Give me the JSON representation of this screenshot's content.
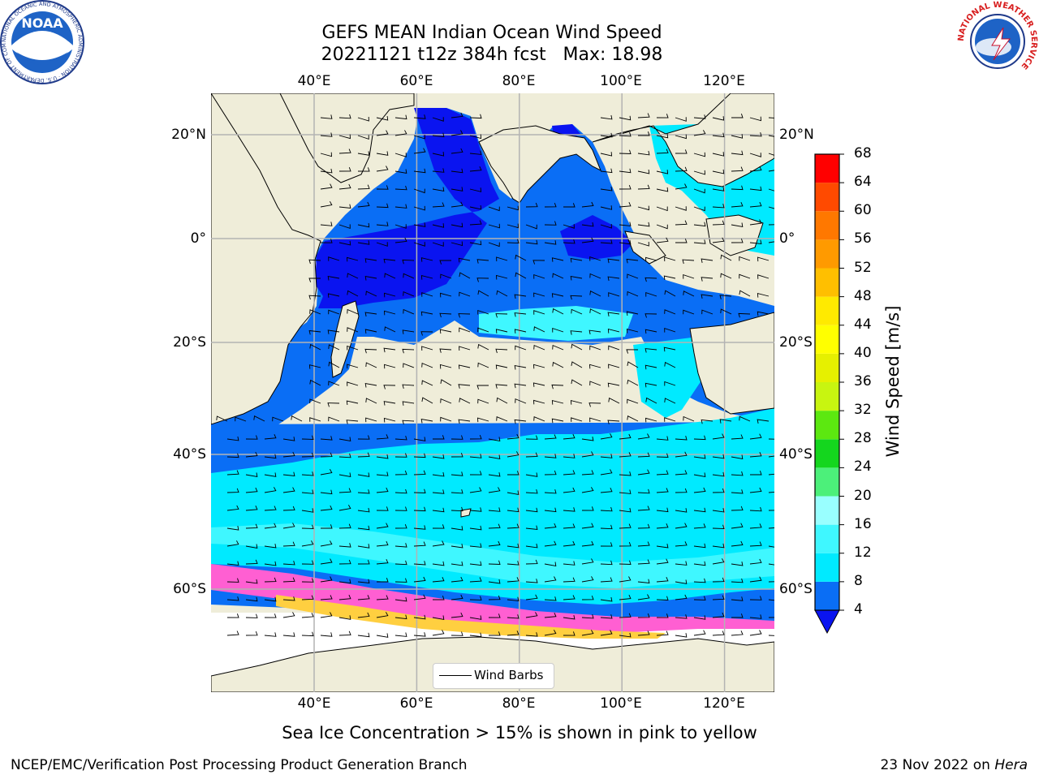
{
  "title_line1": "GEFS MEAN Indian Ocean Wind Speed",
  "title_line2": "20221121 t12z 384h fcst   Max: 18.98",
  "map": {
    "lon_labels": [
      "40°E",
      "60°E",
      "80°E",
      "100°E",
      "120°E"
    ],
    "lat_labels": [
      "20°N",
      "0°",
      "20°S",
      "40°S",
      "60°S"
    ],
    "lon_values": [
      40,
      60,
      80,
      100,
      120
    ],
    "lat_values": [
      20,
      0,
      -20,
      -40,
      -60
    ],
    "extent": {
      "lon_min": 20,
      "lon_max": 130,
      "lat_min": -72,
      "lat_max": 28
    },
    "colors": {
      "land": "#efedd9",
      "coast": "#000000",
      "grid": "#b3b3b3",
      "ice_free_ocean": "#ffffff"
    },
    "legend_label": "Wind Barbs"
  },
  "colorbar": {
    "label": "Wind Speed [m/s]",
    "ticks": [
      "68",
      "64",
      "60",
      "56",
      "52",
      "48",
      "44",
      "40",
      "36",
      "32",
      "28",
      "24",
      "20",
      "16",
      "12",
      "8",
      "4"
    ],
    "bins": [
      {
        "lo": 4,
        "hi": 8,
        "color": "#0a6ef5"
      },
      {
        "lo": 8,
        "hi": 12,
        "color": "#00eaff"
      },
      {
        "lo": 12,
        "hi": 16,
        "color": "#3ff7ff"
      },
      {
        "lo": 16,
        "hi": 20,
        "color": "#99ffff"
      },
      {
        "lo": 20,
        "hi": 24,
        "color": "#4cf07a"
      },
      {
        "lo": 24,
        "hi": 28,
        "color": "#14d61e"
      },
      {
        "lo": 28,
        "hi": 32,
        "color": "#5ce810"
      },
      {
        "lo": 32,
        "hi": 36,
        "color": "#c8f510"
      },
      {
        "lo": 36,
        "hi": 40,
        "color": "#e6f000"
      },
      {
        "lo": 40,
        "hi": 44,
        "color": "#ffff00"
      },
      {
        "lo": 44,
        "hi": 48,
        "color": "#ffea00"
      },
      {
        "lo": 48,
        "hi": 52,
        "color": "#ffbf00"
      },
      {
        "lo": 52,
        "hi": 56,
        "color": "#ff9a00"
      },
      {
        "lo": 56,
        "hi": 60,
        "color": "#ff7800"
      },
      {
        "lo": 60,
        "hi": 64,
        "color": "#ff4a00"
      },
      {
        "lo": 64,
        "hi": 68,
        "color": "#ff0000"
      }
    ],
    "under_color": "#0a14f0"
  },
  "caption": "Sea Ice Concentration > 15% is shown in pink to yellow",
  "footer_left": "NCEP/EMC/Verification Post Processing Product Generation Branch",
  "footer_right_date": "23 Nov 2022 on ",
  "footer_right_machine": "Hera",
  "logos": {
    "noaa_text": "NOAA",
    "noaa_ring": "NATIONAL OCEANIC AND ATMOSPHERIC ADMINISTRATION · U.S. DEPARTMENT OF COMMERCE ·",
    "nws_ring": "NATIONAL WEATHER SERVICE"
  }
}
